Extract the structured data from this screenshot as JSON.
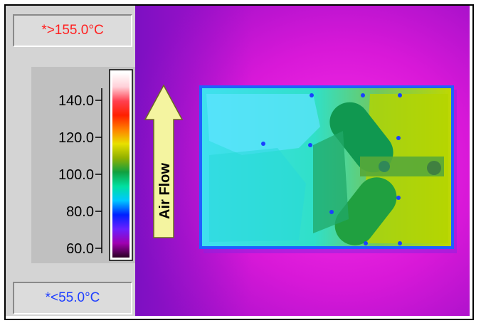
{
  "scale": {
    "max_label": "*>155.0°C",
    "min_label": "*<55.0°C",
    "max_color": "#ff2020",
    "min_color": "#2040ff",
    "ticks": [
      {
        "label": "140.0",
        "value": 140
      },
      {
        "label": "120.0",
        "value": 120
      },
      {
        "label": "100.0",
        "value": 100
      },
      {
        "label": "80.0",
        "value": 80
      },
      {
        "label": "60.0",
        "value": 60
      }
    ],
    "range": [
      55,
      155
    ],
    "palette": [
      "#2a0022",
      "#a000b0",
      "#6a20ff",
      "#0020ff",
      "#00c8ff",
      "#00e0a0",
      "#10a040",
      "#90b000",
      "#e8e000",
      "#ff8000",
      "#ff2000",
      "#ff4050",
      "#ffd0d8",
      "#ffffff"
    ]
  },
  "image": {
    "arrow_label": "Air Flow",
    "background_color": "#d015d0",
    "board_color": "#30e8e0",
    "hot_color": "#b8d800",
    "arrow_color": "#f4f4a0"
  }
}
